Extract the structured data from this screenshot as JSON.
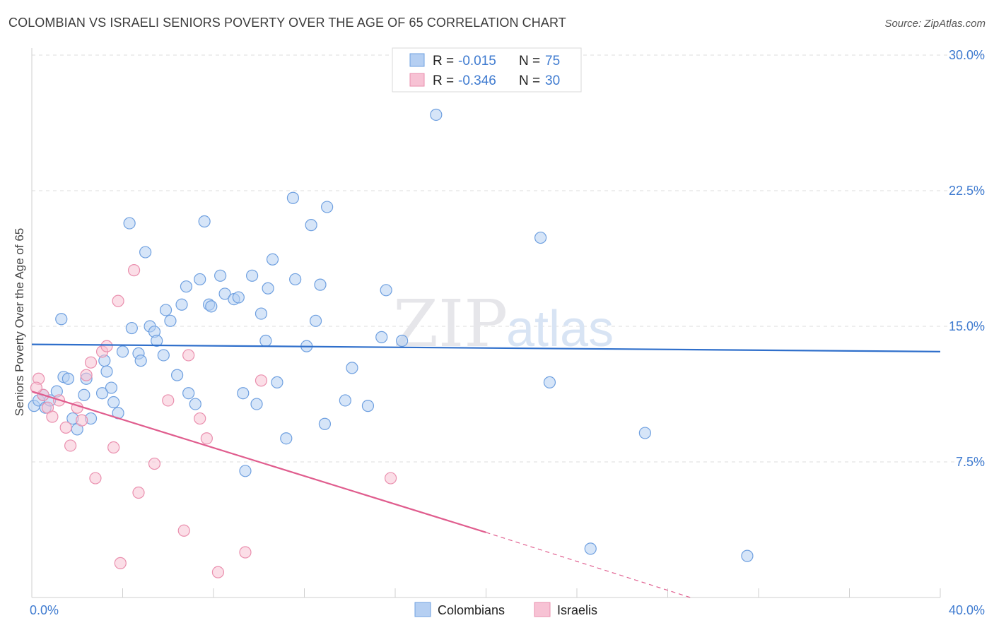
{
  "header": {
    "title": "COLOMBIAN VS ISRAELI SENIORS POVERTY OVER THE AGE OF 65 CORRELATION CHART",
    "source": "Source: ZipAtlas.com"
  },
  "watermark": {
    "zip": "ZIP",
    "atlas": "atlas"
  },
  "chart_data": {
    "type": "scatter",
    "title": "COLOMBIAN VS ISRAELI SENIORS POVERTY OVER THE AGE OF 65 CORRELATION CHART",
    "xlabel": "",
    "ylabel": "Seniors Poverty Over the Age of 65",
    "xlim": [
      0,
      40
    ],
    "ylim": [
      0,
      30
    ],
    "x_tick_labels": [
      "0.0%",
      "40.0%"
    ],
    "y_ticks": [
      7.5,
      15.0,
      22.5,
      30.0
    ],
    "y_tick_labels": [
      "7.5%",
      "15.0%",
      "22.5%",
      "30.0%"
    ],
    "grid": true,
    "legend_position": "top-center",
    "legend": [
      {
        "r_label": "R =",
        "r_value": "-0.015",
        "n_label": "N =",
        "n_value": "75"
      },
      {
        "r_label": "R =",
        "r_value": "-0.346",
        "n_label": "N =",
        "n_value": "30"
      }
    ],
    "series": [
      {
        "name": "Colombians",
        "color": "#6fa0e0",
        "fill": "#b5cff2",
        "trend_color": "#2f6fcb",
        "trend": {
          "x0": 0,
          "y0": 14.0,
          "x1": 40,
          "y1": 13.6
        },
        "points": [
          [
            0.1,
            10.6
          ],
          [
            0.3,
            10.9
          ],
          [
            0.5,
            11.2
          ],
          [
            0.6,
            10.5
          ],
          [
            0.8,
            10.9
          ],
          [
            1.1,
            11.4
          ],
          [
            1.3,
            15.4
          ],
          [
            1.4,
            12.2
          ],
          [
            1.6,
            12.1
          ],
          [
            1.8,
            9.9
          ],
          [
            2.0,
            9.3
          ],
          [
            2.3,
            11.2
          ],
          [
            2.4,
            12.1
          ],
          [
            2.6,
            9.9
          ],
          [
            3.1,
            11.3
          ],
          [
            3.2,
            13.1
          ],
          [
            3.3,
            12.5
          ],
          [
            3.5,
            11.6
          ],
          [
            3.6,
            10.8
          ],
          [
            3.8,
            10.2
          ],
          [
            4.0,
            13.6
          ],
          [
            4.3,
            20.7
          ],
          [
            4.4,
            14.9
          ],
          [
            4.7,
            13.5
          ],
          [
            4.8,
            13.1
          ],
          [
            5.0,
            19.1
          ],
          [
            5.2,
            15.0
          ],
          [
            5.4,
            14.7
          ],
          [
            5.5,
            14.2
          ],
          [
            5.8,
            13.4
          ],
          [
            5.9,
            15.9
          ],
          [
            6.1,
            15.3
          ],
          [
            6.4,
            12.3
          ],
          [
            6.6,
            16.2
          ],
          [
            6.8,
            17.2
          ],
          [
            6.9,
            11.3
          ],
          [
            7.2,
            10.7
          ],
          [
            7.4,
            17.6
          ],
          [
            7.6,
            20.8
          ],
          [
            7.8,
            16.2
          ],
          [
            7.9,
            16.1
          ],
          [
            8.3,
            17.8
          ],
          [
            8.5,
            16.8
          ],
          [
            8.9,
            16.5
          ],
          [
            9.1,
            16.6
          ],
          [
            9.3,
            11.3
          ],
          [
            9.4,
            7.0
          ],
          [
            9.7,
            17.8
          ],
          [
            9.9,
            10.7
          ],
          [
            10.1,
            15.7
          ],
          [
            10.3,
            14.2
          ],
          [
            10.4,
            17.1
          ],
          [
            10.6,
            18.7
          ],
          [
            10.8,
            11.9
          ],
          [
            11.2,
            8.8
          ],
          [
            11.5,
            22.1
          ],
          [
            11.6,
            17.6
          ],
          [
            12.1,
            13.9
          ],
          [
            12.3,
            20.6
          ],
          [
            12.5,
            15.3
          ],
          [
            12.7,
            17.3
          ],
          [
            12.9,
            9.6
          ],
          [
            13.0,
            21.6
          ],
          [
            13.8,
            10.9
          ],
          [
            14.1,
            12.7
          ],
          [
            14.8,
            10.6
          ],
          [
            15.4,
            14.4
          ],
          [
            15.6,
            17.0
          ],
          [
            16.3,
            14.2
          ],
          [
            17.8,
            26.7
          ],
          [
            22.4,
            19.9
          ],
          [
            22.8,
            11.9
          ],
          [
            24.6,
            2.7
          ],
          [
            27.0,
            9.1
          ],
          [
            31.5,
            2.3
          ]
        ]
      },
      {
        "name": "Israelis",
        "color": "#ea8fae",
        "fill": "#f7c2d4",
        "trend_color": "#e05d8e",
        "trend": {
          "x0": 0,
          "y0": 11.4,
          "x1": 20,
          "y1": 3.6
        },
        "trend_dashed_extension": {
          "x0": 20,
          "y0": 3.6,
          "x1": 29,
          "y1": 0
        },
        "points": [
          [
            0.3,
            12.1
          ],
          [
            0.5,
            11.2
          ],
          [
            0.7,
            10.5
          ],
          [
            0.9,
            10.0
          ],
          [
            1.2,
            10.9
          ],
          [
            1.5,
            9.4
          ],
          [
            1.7,
            8.4
          ],
          [
            2.0,
            10.5
          ],
          [
            2.2,
            9.8
          ],
          [
            2.4,
            12.3
          ],
          [
            2.6,
            13.0
          ],
          [
            2.8,
            6.6
          ],
          [
            3.1,
            13.6
          ],
          [
            3.3,
            13.9
          ],
          [
            3.6,
            8.3
          ],
          [
            3.8,
            16.4
          ],
          [
            3.9,
            1.9
          ],
          [
            4.5,
            18.1
          ],
          [
            4.7,
            5.8
          ],
          [
            5.4,
            7.4
          ],
          [
            6.0,
            10.9
          ],
          [
            6.7,
            3.7
          ],
          [
            6.9,
            13.4
          ],
          [
            7.4,
            9.9
          ],
          [
            7.7,
            8.8
          ],
          [
            8.2,
            1.4
          ],
          [
            9.4,
            2.5
          ],
          [
            10.1,
            12.0
          ],
          [
            15.8,
            6.6
          ],
          [
            0.2,
            11.6
          ]
        ]
      }
    ]
  }
}
